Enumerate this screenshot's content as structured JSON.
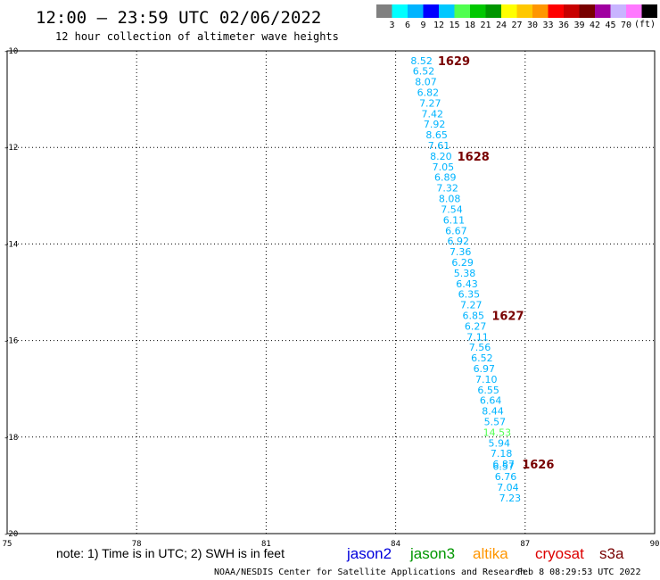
{
  "header": {
    "title": "12:00 – 23:59 UTC 02/06/2022",
    "subtitle": "12 hour collection of altimeter wave heights"
  },
  "legend": {
    "unit": "(ft)",
    "colors": [
      "#808080",
      "#00ffff",
      "#00b4ff",
      "#0000ff",
      "#00c8ff",
      "#50ff50",
      "#00c800",
      "#009600",
      "#ffff00",
      "#ffc800",
      "#ff9600",
      "#ff0000",
      "#c80000",
      "#780000",
      "#a000a0",
      "#c8b4ff",
      "#ff78ff",
      "#000000"
    ],
    "labels": [
      "3",
      "6",
      "9",
      "12",
      "15",
      "18",
      "21",
      "24",
      "27",
      "30",
      "33",
      "36",
      "39",
      "42",
      "45",
      "70"
    ]
  },
  "footer": {
    "note": "note: 1) Time is in UTC; 2) SWH is in feet",
    "credit": "NOAA/NESDIS Center for Satellite Applications and Research",
    "generated": "Feb  8 08:29:53 UTC 2022"
  },
  "satellites": [
    {
      "name": "jason2",
      "color": "#0000dc"
    },
    {
      "name": "jason3",
      "color": "#009600"
    },
    {
      "name": "altika",
      "color": "#ff9600"
    },
    {
      "name": "cryosat",
      "color": "#dc0000"
    },
    {
      "name": "s3a",
      "color": "#780000"
    }
  ],
  "chart_data": {
    "type": "scatter",
    "xlim": [
      75,
      90
    ],
    "ylim": [
      -20,
      -10
    ],
    "x_ticks": [
      "75",
      "78",
      "81",
      "84",
      "87",
      "90"
    ],
    "y_ticks": [
      "-10",
      "-12",
      "-14",
      "-16",
      "-18",
      "-20"
    ],
    "grid": true,
    "points": [
      {
        "lon": 84.6,
        "lat": -10.2,
        "swh": "8.52",
        "color": "#00b4ff"
      },
      {
        "lon": 84.65,
        "lat": -10.42,
        "swh": "6.52",
        "color": "#00b4ff"
      },
      {
        "lon": 84.7,
        "lat": -10.64,
        "swh": "8.07",
        "color": "#00b4ff"
      },
      {
        "lon": 84.75,
        "lat": -10.86,
        "swh": "6.82",
        "color": "#00b4ff"
      },
      {
        "lon": 84.8,
        "lat": -11.08,
        "swh": "7.27",
        "color": "#00b4ff"
      },
      {
        "lon": 84.85,
        "lat": -11.3,
        "swh": "7.42",
        "color": "#00b4ff"
      },
      {
        "lon": 84.9,
        "lat": -11.52,
        "swh": "7.92",
        "color": "#00b4ff"
      },
      {
        "lon": 84.95,
        "lat": -11.74,
        "swh": "8.65",
        "color": "#00b4ff"
      },
      {
        "lon": 85.0,
        "lat": -11.96,
        "swh": "7.61",
        "color": "#00b4ff"
      },
      {
        "lon": 85.05,
        "lat": -12.18,
        "swh": "8.20",
        "color": "#00b4ff"
      },
      {
        "lon": 85.1,
        "lat": -12.4,
        "swh": "7.05",
        "color": "#00b4ff"
      },
      {
        "lon": 85.15,
        "lat": -12.62,
        "swh": "6.89",
        "color": "#00b4ff"
      },
      {
        "lon": 85.2,
        "lat": -12.84,
        "swh": "7.32",
        "color": "#00b4ff"
      },
      {
        "lon": 85.25,
        "lat": -13.06,
        "swh": "8.08",
        "color": "#00b4ff"
      },
      {
        "lon": 85.3,
        "lat": -13.28,
        "swh": "7.54",
        "color": "#00b4ff"
      },
      {
        "lon": 85.35,
        "lat": -13.5,
        "swh": "6.11",
        "color": "#00b4ff"
      },
      {
        "lon": 85.4,
        "lat": -13.72,
        "swh": "6.67",
        "color": "#00b4ff"
      },
      {
        "lon": 85.45,
        "lat": -13.94,
        "swh": "6.92",
        "color": "#00b4ff"
      },
      {
        "lon": 85.5,
        "lat": -14.16,
        "swh": "7.36",
        "color": "#00b4ff"
      },
      {
        "lon": 85.55,
        "lat": -14.38,
        "swh": "6.29",
        "color": "#00b4ff"
      },
      {
        "lon": 85.6,
        "lat": -14.6,
        "swh": "5.38",
        "color": "#00b4ff"
      },
      {
        "lon": 85.65,
        "lat": -14.82,
        "swh": "6.43",
        "color": "#00b4ff"
      },
      {
        "lon": 85.7,
        "lat": -15.04,
        "swh": "6.35",
        "color": "#00b4ff"
      },
      {
        "lon": 85.75,
        "lat": -15.26,
        "swh": "7.27",
        "color": "#00b4ff"
      },
      {
        "lon": 85.8,
        "lat": -15.48,
        "swh": "6.85",
        "color": "#00b4ff"
      },
      {
        "lon": 85.85,
        "lat": -15.7,
        "swh": "6.27",
        "color": "#00b4ff"
      },
      {
        "lon": 85.9,
        "lat": -15.92,
        "swh": "7.11",
        "color": "#00b4ff"
      },
      {
        "lon": 85.95,
        "lat": -16.14,
        "swh": "7.56",
        "color": "#00b4ff"
      },
      {
        "lon": 86.0,
        "lat": -16.36,
        "swh": "6.52",
        "color": "#00b4ff"
      },
      {
        "lon": 86.05,
        "lat": -16.58,
        "swh": "6.97",
        "color": "#00b4ff"
      },
      {
        "lon": 86.1,
        "lat": -16.8,
        "swh": "7.10",
        "color": "#00b4ff"
      },
      {
        "lon": 86.15,
        "lat": -17.02,
        "swh": "6.55",
        "color": "#00b4ff"
      },
      {
        "lon": 86.2,
        "lat": -17.24,
        "swh": "6.64",
        "color": "#00b4ff"
      },
      {
        "lon": 86.25,
        "lat": -17.46,
        "swh": "8.44",
        "color": "#00b4ff"
      },
      {
        "lon": 86.3,
        "lat": -17.68,
        "swh": "5.57",
        "color": "#00b4ff"
      },
      {
        "lon": 86.35,
        "lat": -17.9,
        "swh": "14.53",
        "color": "#50ff50"
      },
      {
        "lon": 86.4,
        "lat": -18.12,
        "swh": "5.94",
        "color": "#00b4ff"
      },
      {
        "lon": 86.45,
        "lat": -18.34,
        "swh": "7.18",
        "color": "#00b4ff"
      },
      {
        "lon": 86.5,
        "lat": -18.56,
        "swh": "6.87",
        "color": "#00b4ff"
      },
      {
        "lon": 86.5,
        "lat": -18.6,
        "swh": "6.57",
        "color": "#00b4ff"
      },
      {
        "lon": 86.55,
        "lat": -18.82,
        "swh": "6.76",
        "color": "#00b4ff"
      },
      {
        "lon": 86.6,
        "lat": -19.04,
        "swh": "7.04",
        "color": "#00b4ff"
      },
      {
        "lon": 86.65,
        "lat": -19.26,
        "swh": "7.23",
        "color": "#00b4ff"
      }
    ],
    "time_labels": [
      {
        "lon": 85.35,
        "lat": -10.2,
        "text": "1629"
      },
      {
        "lon": 85.8,
        "lat": -12.18,
        "text": "1628"
      },
      {
        "lon": 86.6,
        "lat": -15.48,
        "text": "1627"
      },
      {
        "lon": 87.3,
        "lat": -18.56,
        "text": "1626"
      }
    ]
  }
}
